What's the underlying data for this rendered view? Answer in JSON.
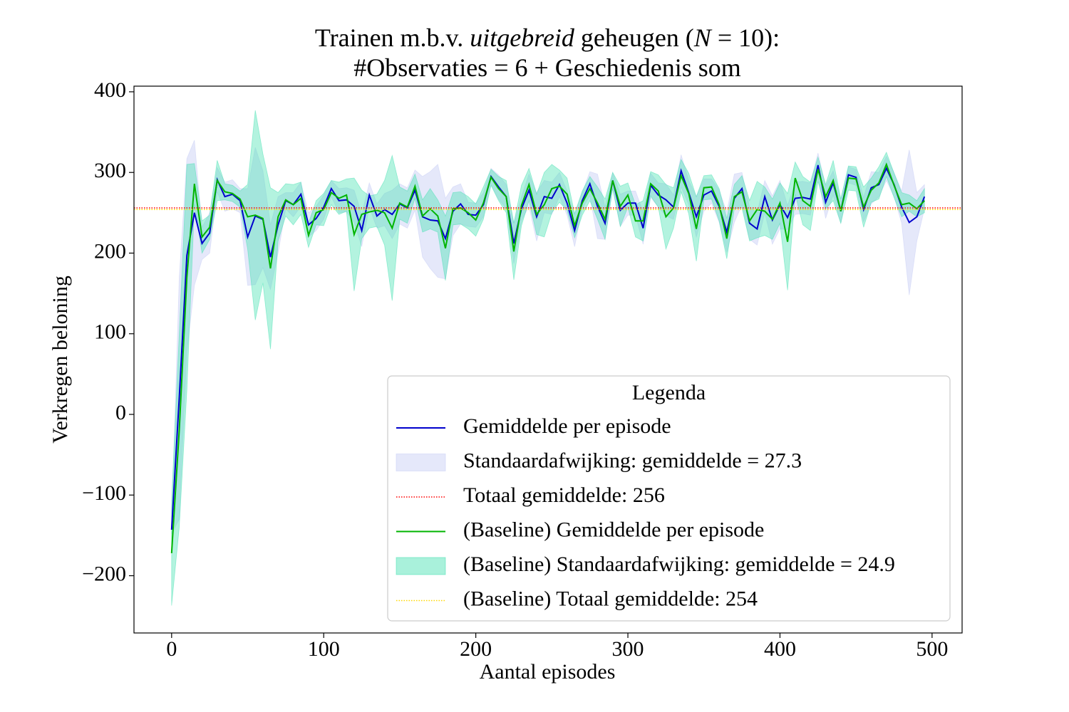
{
  "chart_data": {
    "type": "line",
    "title": [
      [
        {
          "text": "Trainen m.b.v. "
        },
        {
          "text": "uitgebreid",
          "italic": true
        },
        {
          "text": " geheugen ("
        },
        {
          "text": "N",
          "italic": true
        },
        {
          "text": " = 10):"
        }
      ],
      [
        {
          "text": "#Observaties = 6 + Geschiedenis som"
        }
      ]
    ],
    "xlabel": "Aantal episodes",
    "ylabel": "Verkregen beloning",
    "legend_title": "Legenda",
    "legend": "lower right",
    "xlim": [
      -24.75,
      519.75
    ],
    "ylim": [
      -271,
      407
    ],
    "xticks": [
      0,
      100,
      200,
      300,
      400,
      500
    ],
    "yticks": [
      {
        "value": -200,
        "label": "−200"
      },
      {
        "value": -100,
        "label": "−100"
      },
      0,
      100,
      200,
      300,
      400
    ],
    "x": [
      0,
      5,
      10,
      15,
      20,
      25,
      30,
      35,
      40,
      45,
      50,
      55,
      60,
      65,
      70,
      75,
      80,
      85,
      90,
      95,
      100,
      105,
      110,
      115,
      120,
      125,
      130,
      135,
      140,
      145,
      150,
      155,
      160,
      165,
      170,
      175,
      180,
      185,
      190,
      195,
      200,
      205,
      210,
      215,
      220,
      225,
      230,
      235,
      240,
      245,
      250,
      255,
      260,
      265,
      270,
      275,
      280,
      285,
      290,
      295,
      300,
      305,
      310,
      315,
      320,
      325,
      330,
      335,
      340,
      345,
      350,
      355,
      360,
      365,
      370,
      375,
      380,
      385,
      390,
      395,
      400,
      405,
      410,
      415,
      420,
      425,
      430,
      435,
      440,
      445,
      450,
      455,
      460,
      465,
      470,
      475,
      480,
      485,
      490,
      495
    ],
    "series": [
      {
        "name": "Gemiddelde per episode",
        "color": "#0000cd",
        "values": [
          -143,
          20,
          197,
          250,
          212,
          225,
          291,
          270,
          273,
          265,
          220,
          246,
          242,
          195,
          235,
          265,
          260,
          273,
          235,
          243,
          257,
          280,
          265,
          266,
          258,
          228,
          272,
          246,
          254,
          248,
          261,
          256,
          278,
          245,
          241,
          240,
          218,
          252,
          261,
          248,
          247,
          260,
          295,
          282,
          270,
          212,
          255,
          278,
          245,
          270,
          268,
          285,
          262,
          228,
          265,
          286,
          258,
          237,
          290,
          253,
          262,
          262,
          231,
          284,
          272,
          266,
          257,
          302,
          275,
          245,
          272,
          277,
          258,
          226,
          268,
          280,
          237,
          230,
          270,
          241,
          260,
          244,
          268,
          269,
          267,
          309,
          263,
          287,
          252,
          297,
          294,
          254,
          281,
          285,
          305,
          285,
          257,
          238,
          245,
          270
        ],
        "band": {
          "name": "Standaardafwijking: gemiddelde = 27.3",
          "color": "#c5cbf5",
          "std": [
            5,
            150,
            120,
            90,
            20,
            25,
            15,
            18,
            18,
            15,
            60,
            85,
            60,
            40,
            35,
            10,
            15,
            15,
            15,
            15,
            15,
            10,
            15,
            15,
            20,
            20,
            15,
            15,
            20,
            30,
            25,
            25,
            25,
            50,
            60,
            70,
            50,
            30,
            25,
            15,
            15,
            15,
            10,
            15,
            15,
            25,
            15,
            20,
            30,
            20,
            20,
            15,
            15,
            20,
            10,
            15,
            40,
            20,
            10,
            20,
            15,
            15,
            20,
            15,
            15,
            20,
            15,
            20,
            15,
            25,
            20,
            15,
            20,
            25,
            30,
            20,
            20,
            20,
            20,
            30,
            30,
            15,
            20,
            20,
            20,
            15,
            20,
            15,
            15,
            10,
            10,
            15,
            20,
            15,
            15,
            15,
            20,
            90,
            30,
            15
          ]
        },
        "mean_line": {
          "name": "Totaal gemiddelde: 256",
          "value": 256,
          "color": "#ff0000"
        }
      },
      {
        "name": "(Baseline) Gemiddelde per episode",
        "color": "#00b400",
        "values": [
          -172,
          -20,
          170,
          286,
          220,
          232,
          290,
          276,
          274,
          267,
          245,
          247,
          243,
          181,
          245,
          266,
          260,
          268,
          222,
          250,
          254,
          275,
          268,
          272,
          223,
          248,
          251,
          253,
          250,
          231,
          262,
          257,
          283,
          246,
          255,
          246,
          206,
          255,
          256,
          250,
          241,
          262,
          294,
          280,
          270,
          202,
          259,
          285,
          248,
          260,
          280,
          283,
          273,
          234,
          262,
          280,
          262,
          242,
          290,
          258,
          272,
          240,
          240,
          286,
          277,
          245,
          256,
          296,
          274,
          230,
          281,
          282,
          260,
          218,
          270,
          276,
          240,
          254,
          252,
          242,
          262,
          214,
          293,
          265,
          258,
          304,
          270,
          290,
          252,
          293,
          292,
          257,
          278,
          287,
          310,
          284,
          260,
          262,
          255,
          265
        ],
        "band": {
          "name": "(Baseline) Standaardafwijking: gemiddelde = 24.9",
          "color": "#40e0b0",
          "std": [
            65,
            120,
            140,
            25,
            20,
            15,
            25,
            10,
            10,
            10,
            40,
            130,
            80,
            100,
            30,
            20,
            25,
            20,
            15,
            15,
            20,
            15,
            20,
            20,
            70,
            30,
            20,
            20,
            40,
            90,
            20,
            20,
            15,
            20,
            25,
            20,
            40,
            20,
            20,
            20,
            20,
            20,
            10,
            15,
            20,
            35,
            25,
            20,
            25,
            40,
            30,
            20,
            20,
            15,
            15,
            15,
            20,
            25,
            10,
            25,
            15,
            20,
            25,
            15,
            20,
            40,
            25,
            20,
            25,
            40,
            15,
            15,
            20,
            25,
            15,
            20,
            25,
            35,
            30,
            25,
            25,
            60,
            20,
            30,
            30,
            15,
            15,
            25,
            15,
            15,
            15,
            25,
            15,
            20,
            15,
            15,
            15,
            10,
            10,
            15
          ]
        },
        "mean_line": {
          "name": "(Baseline) Totaal gemiddelde: 254",
          "value": 254,
          "color": "#ffd700"
        }
      }
    ]
  }
}
